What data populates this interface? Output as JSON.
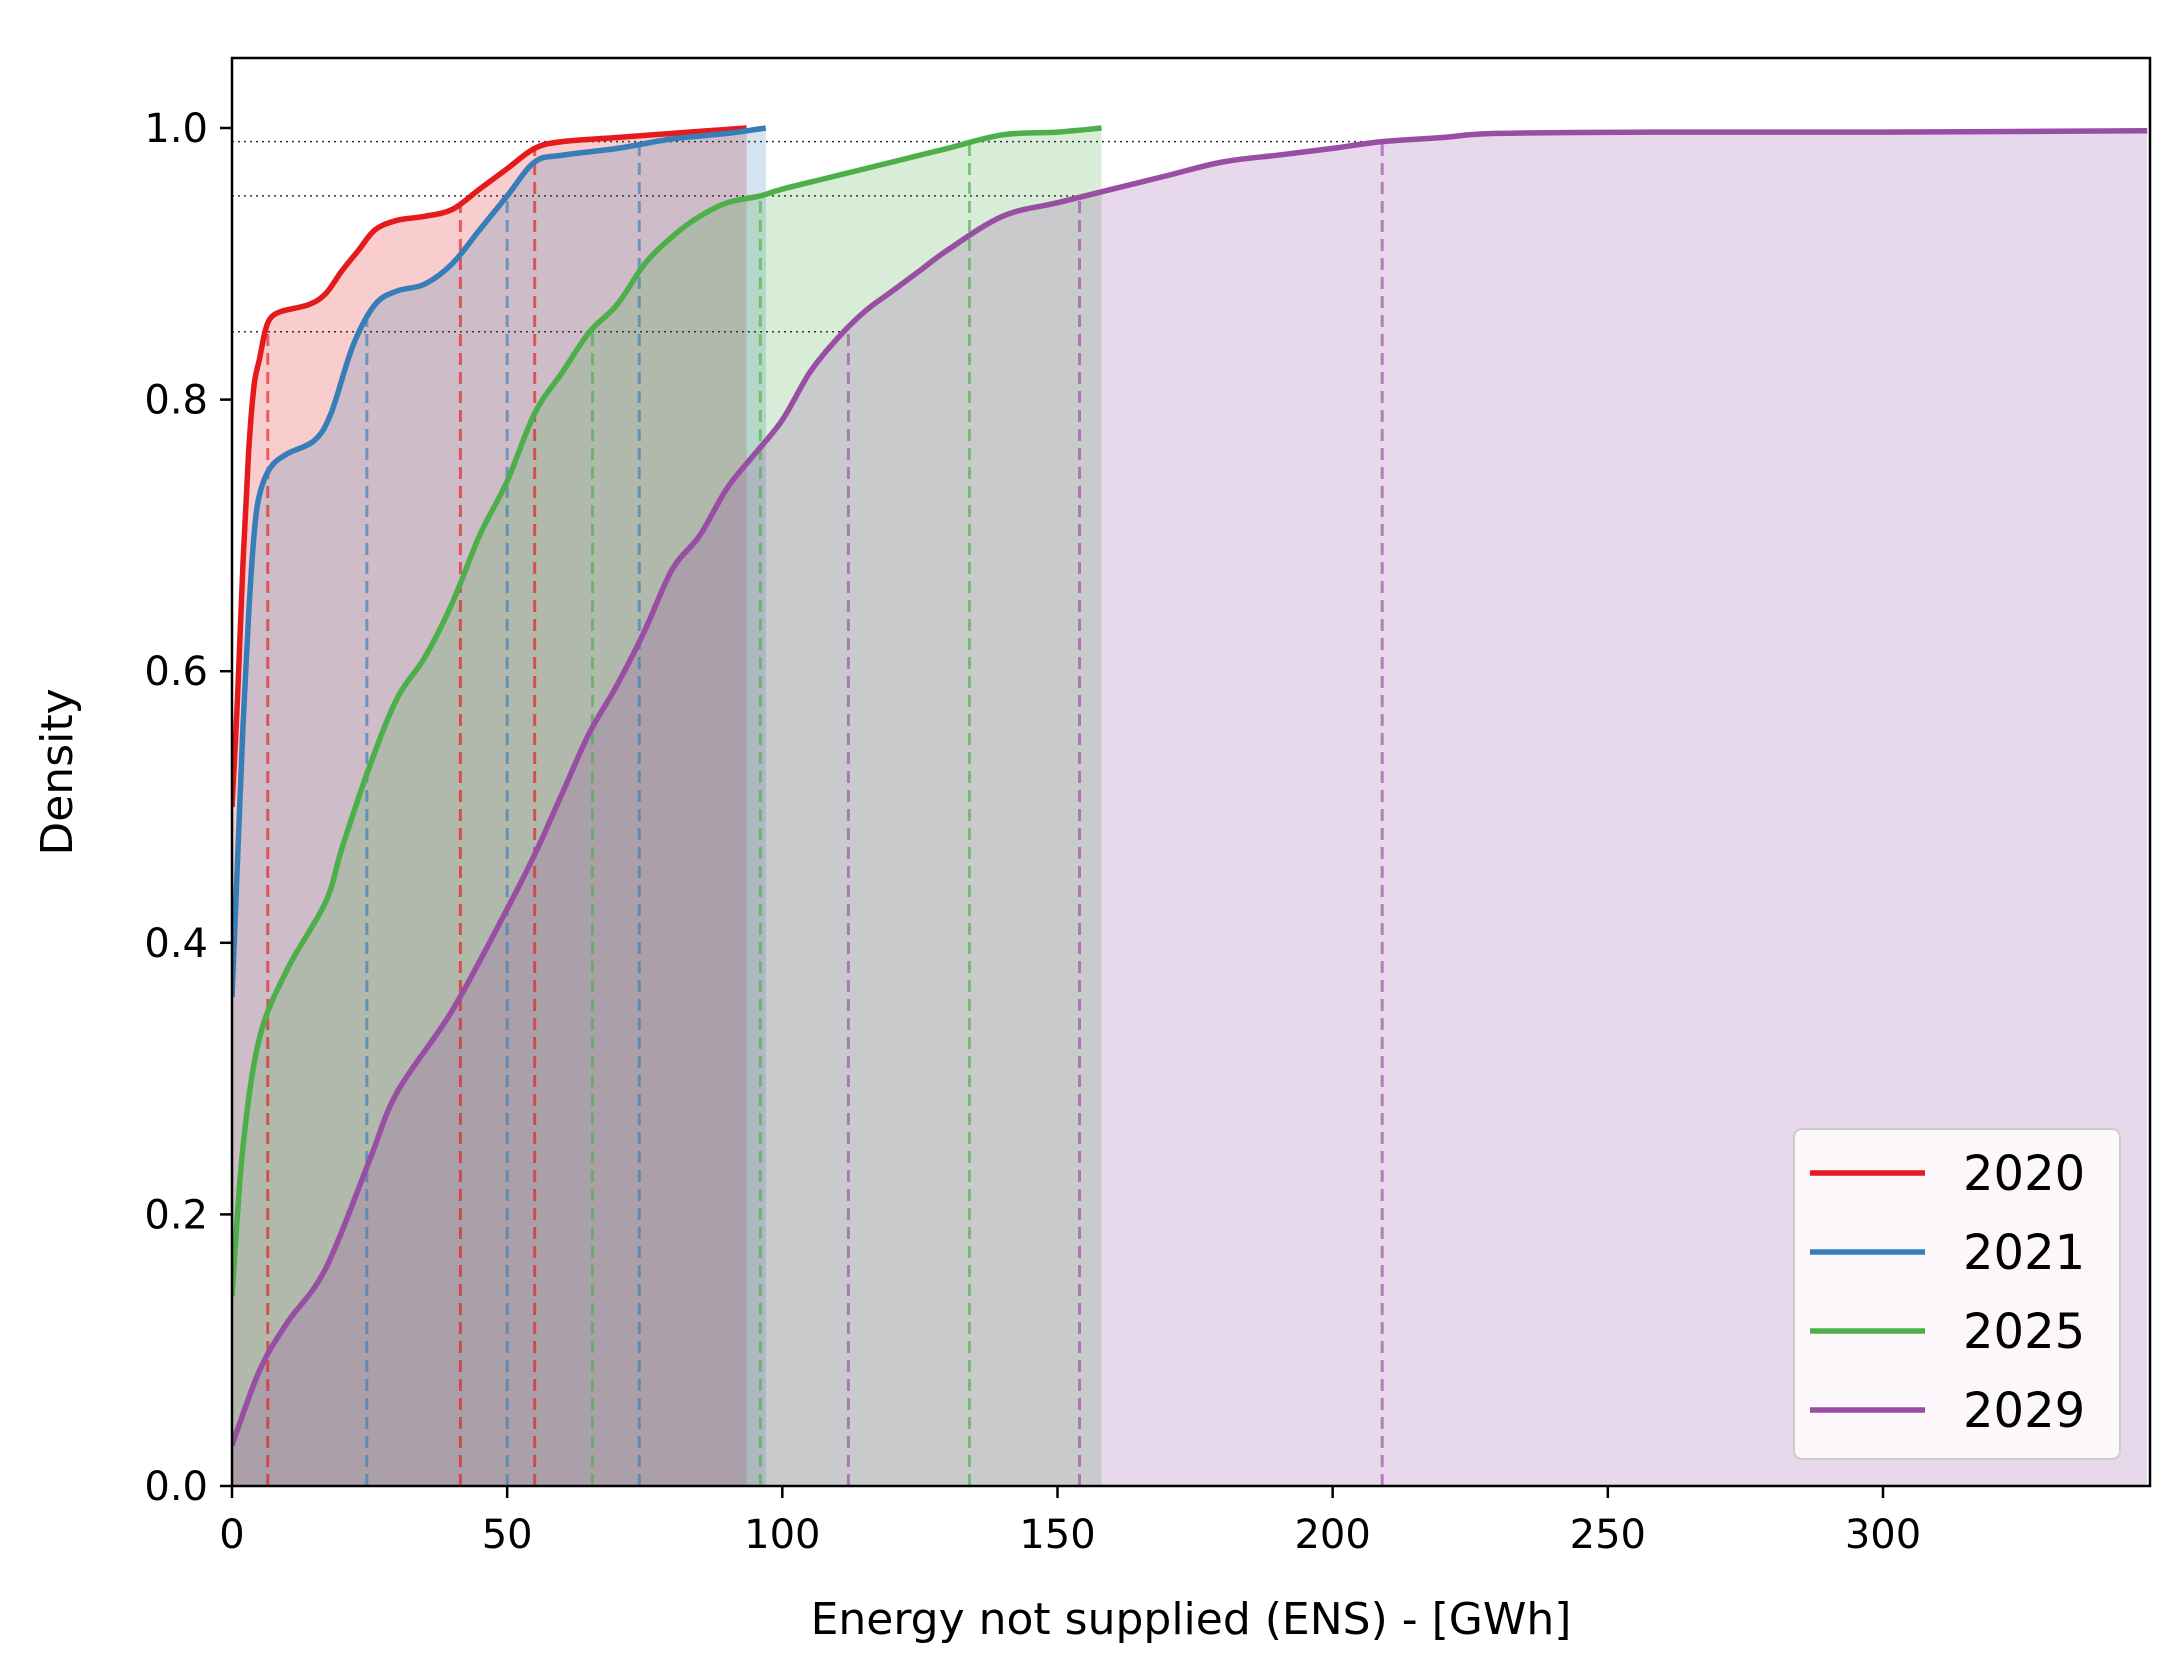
{
  "chart_data": {
    "type": "line",
    "title": "",
    "xlabel": "Energy not supplied (ENS) - [GWh]",
    "ylabel": "Density",
    "xlim": [
      0,
      348
    ],
    "ylim": [
      0,
      1.05
    ],
    "xticks": [
      0,
      50,
      100,
      150,
      200,
      250,
      300
    ],
    "yticks": [
      0.0,
      0.2,
      0.4,
      0.6,
      0.8,
      1.0
    ],
    "xtick_labels": [
      "0",
      "50",
      "100",
      "150",
      "200",
      "250",
      "300"
    ],
    "ytick_labels": [
      "0.0",
      "0.2",
      "0.4",
      "0.6",
      "0.8",
      "1.0"
    ],
    "grid": false,
    "legend_position": "bottom-right",
    "reference_levels": [
      0.85,
      0.95,
      0.99
    ],
    "series": [
      {
        "name": "2020",
        "color": "#e41a1c",
        "fill_end": 93.5,
        "quantiles": [
          6.5,
          41.5,
          55
        ],
        "points": [
          [
            0,
            0.5
          ],
          [
            1,
            0.58
          ],
          [
            2,
            0.68
          ],
          [
            3,
            0.76
          ],
          [
            4,
            0.81
          ],
          [
            5,
            0.83
          ],
          [
            6,
            0.85
          ],
          [
            7,
            0.86
          ],
          [
            9,
            0.865
          ],
          [
            14,
            0.87
          ],
          [
            17,
            0.878
          ],
          [
            20,
            0.895
          ],
          [
            23,
            0.91
          ],
          [
            26,
            0.925
          ],
          [
            30,
            0.932
          ],
          [
            35,
            0.935
          ],
          [
            40,
            0.94
          ],
          [
            45,
            0.955
          ],
          [
            50,
            0.97
          ],
          [
            55,
            0.985
          ],
          [
            60,
            0.99
          ],
          [
            70,
            0.993
          ],
          [
            80,
            0.996
          ],
          [
            93.5,
            1.0
          ]
        ]
      },
      {
        "name": "2021",
        "color": "#377eb8",
        "fill_end": 97,
        "quantiles": [
          24.5,
          50,
          74
        ],
        "points": [
          [
            0,
            0.36
          ],
          [
            1,
            0.46
          ],
          [
            2,
            0.56
          ],
          [
            3,
            0.64
          ],
          [
            4,
            0.7
          ],
          [
            5,
            0.73
          ],
          [
            7,
            0.75
          ],
          [
            10,
            0.76
          ],
          [
            15,
            0.77
          ],
          [
            18,
            0.79
          ],
          [
            22,
            0.84
          ],
          [
            26,
            0.87
          ],
          [
            30,
            0.88
          ],
          [
            35,
            0.885
          ],
          [
            40,
            0.9
          ],
          [
            45,
            0.925
          ],
          [
            50,
            0.95
          ],
          [
            55,
            0.975
          ],
          [
            60,
            0.98
          ],
          [
            70,
            0.985
          ],
          [
            80,
            0.992
          ],
          [
            90,
            0.996
          ],
          [
            97,
            1.0
          ]
        ]
      },
      {
        "name": "2025",
        "color": "#4daf4a",
        "fill_end": 158,
        "quantiles": [
          65.5,
          96,
          134
        ],
        "points": [
          [
            0,
            0.14
          ],
          [
            2,
            0.25
          ],
          [
            5,
            0.33
          ],
          [
            10,
            0.38
          ],
          [
            17,
            0.43
          ],
          [
            20,
            0.47
          ],
          [
            25,
            0.53
          ],
          [
            30,
            0.58
          ],
          [
            35,
            0.61
          ],
          [
            40,
            0.65
          ],
          [
            45,
            0.7
          ],
          [
            50,
            0.74
          ],
          [
            55,
            0.79
          ],
          [
            60,
            0.82
          ],
          [
            65,
            0.85
          ],
          [
            70,
            0.87
          ],
          [
            75,
            0.9
          ],
          [
            80,
            0.92
          ],
          [
            85,
            0.935
          ],
          [
            90,
            0.945
          ],
          [
            96,
            0.95
          ],
          [
            100,
            0.955
          ],
          [
            110,
            0.965
          ],
          [
            120,
            0.975
          ],
          [
            130,
            0.985
          ],
          [
            140,
            0.995
          ],
          [
            150,
            0.997
          ],
          [
            158,
            1.0
          ]
        ]
      },
      {
        "name": "2029",
        "color": "#984ea3",
        "fill_end": 348,
        "quantiles": [
          112,
          154,
          209
        ],
        "points": [
          [
            0,
            0.03
          ],
          [
            5,
            0.085
          ],
          [
            10,
            0.12
          ],
          [
            17,
            0.16
          ],
          [
            25,
            0.24
          ],
          [
            30,
            0.29
          ],
          [
            40,
            0.35
          ],
          [
            50,
            0.425
          ],
          [
            55,
            0.465
          ],
          [
            60,
            0.51
          ],
          [
            65,
            0.555
          ],
          [
            70,
            0.59
          ],
          [
            75,
            0.63
          ],
          [
            80,
            0.675
          ],
          [
            85,
            0.7
          ],
          [
            90,
            0.735
          ],
          [
            95,
            0.76
          ],
          [
            100,
            0.785
          ],
          [
            105,
            0.82
          ],
          [
            110,
            0.845
          ],
          [
            115,
            0.865
          ],
          [
            120,
            0.88
          ],
          [
            125,
            0.895
          ],
          [
            130,
            0.91
          ],
          [
            140,
            0.935
          ],
          [
            150,
            0.945
          ],
          [
            160,
            0.955
          ],
          [
            170,
            0.965
          ],
          [
            180,
            0.975
          ],
          [
            190,
            0.98
          ],
          [
            200,
            0.985
          ],
          [
            209,
            0.99
          ],
          [
            220,
            0.993
          ],
          [
            230,
            0.996
          ],
          [
            260,
            0.997
          ],
          [
            300,
            0.997
          ],
          [
            348,
            0.998
          ]
        ]
      }
    ]
  }
}
